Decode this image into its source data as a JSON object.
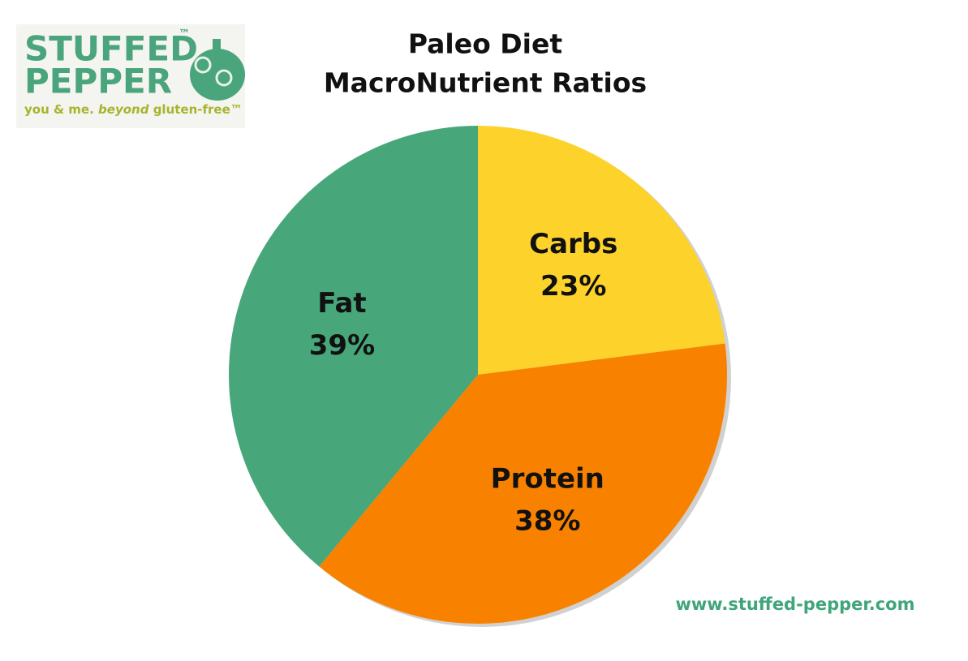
{
  "chart_data": {
    "type": "pie",
    "title": [
      "Paleo Diet",
      "MacroNutrient Ratios"
    ],
    "categories": [
      "Carbs",
      "Protein",
      "Fat"
    ],
    "values": [
      23,
      38,
      39
    ],
    "value_labels": [
      "23%",
      "38%",
      "39%"
    ],
    "colors": [
      "#fdd22b",
      "#f98100",
      "#47a77b"
    ],
    "start_angle": 0,
    "direction": "clockwise",
    "logo": {
      "name": [
        "STUFFED",
        "PEPPER"
      ],
      "trademark": "™",
      "tagline": [
        "you & me.",
        "beyond",
        "gluten-free™"
      ]
    },
    "source": "www.stuffed-pepper.com"
  }
}
